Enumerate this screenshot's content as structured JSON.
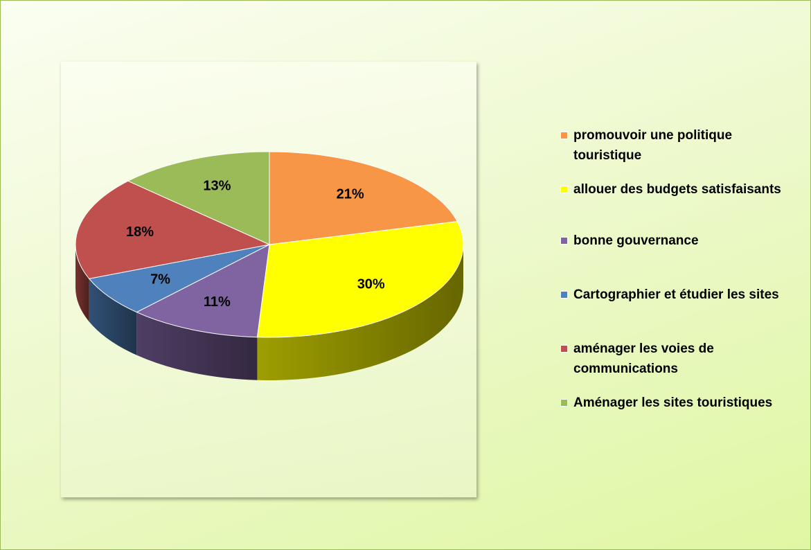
{
  "chart_data": {
    "type": "pie",
    "categories": [
      "promouvoir une politique touristique",
      "allouer des budgets satisfaisants",
      "bonne gouvernance",
      "Cartographier et étudier les sites",
      "aménager les voies de communications",
      "Aménager les sites touristiques"
    ],
    "values": [
      21,
      30,
      11,
      7,
      18,
      13
    ],
    "value_labels": [
      "21%",
      "30%",
      "11%",
      "7%",
      "18%",
      "13%"
    ],
    "colors": [
      "#f79646",
      "#ffff00",
      "#8064a2",
      "#4f81bd",
      "#c0504d",
      "#9bbb59"
    ],
    "legend": "right"
  }
}
